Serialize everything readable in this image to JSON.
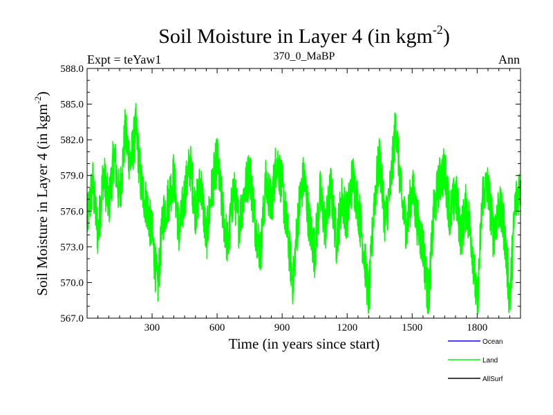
{
  "header": {
    "title_main": "Soil Moisture in Layer 4 (in kgm",
    "title_sup": "-2",
    "title_close": ")",
    "experiment": "Expt = teYaw1",
    "subtitle": "370_0_MaBP",
    "period": "Ann"
  },
  "chart_data": {
    "type": "line",
    "title": "Soil Moisture in Layer 4 (in kgm-2)",
    "xlabel": "Time (in years since start)",
    "ylabel": "Soil Moisture in Layer 4 (in kgm-2)",
    "ylabel_main": "Soil Moisture in Layer 4 (in kgm",
    "ylabel_sup": "-2",
    "ylabel_close": ")",
    "xlim": [
      0,
      2000
    ],
    "ylim": [
      567.0,
      588.0
    ],
    "xticks": [
      300,
      600,
      900,
      1200,
      1500,
      1800
    ],
    "xtick_labels": [
      "300",
      "600",
      "900",
      "1200",
      "1500",
      "1800"
    ],
    "yticks": [
      567,
      570,
      573,
      576,
      579,
      582,
      585,
      588
    ],
    "ytick_labels": [
      "567.0",
      "570.0",
      "573.0",
      "576.0",
      "579.0",
      "582.0",
      "585.0",
      "588.0"
    ],
    "series": [
      {
        "name": "Land",
        "color": "#00ff00",
        "x": [
          0,
          25,
          50,
          75,
          100,
          125,
          150,
          175,
          200,
          225,
          250,
          275,
          300,
          325,
          350,
          375,
          400,
          425,
          450,
          475,
          500,
          525,
          550,
          575,
          600,
          625,
          650,
          675,
          700,
          725,
          750,
          775,
          800,
          825,
          850,
          875,
          900,
          925,
          950,
          975,
          1000,
          1025,
          1050,
          1075,
          1100,
          1125,
          1150,
          1175,
          1200,
          1225,
          1250,
          1275,
          1300,
          1325,
          1350,
          1375,
          1400,
          1425,
          1450,
          1475,
          1500,
          1525,
          1550,
          1575,
          1600,
          1625,
          1650,
          1675,
          1700,
          1725,
          1750,
          1775,
          1800,
          1825,
          1850,
          1875,
          1900,
          1925,
          1950,
          1975,
          2000
        ],
        "values": [
          575.0,
          578.5,
          574.0,
          579.2,
          576.5,
          580.8,
          577.0,
          582.5,
          580.0,
          583.0,
          578.0,
          576.5,
          574.0,
          569.5,
          575.5,
          577.0,
          579.0,
          574.0,
          577.5,
          580.0,
          576.0,
          578.5,
          573.5,
          577.8,
          580.5,
          576.0,
          573.0,
          578.0,
          575.0,
          577.5,
          579.5,
          575.0,
          572.5,
          578.5,
          576.5,
          580.5,
          578.0,
          574.0,
          570.0,
          576.0,
          579.0,
          575.0,
          572.5,
          577.5,
          574.5,
          578.0,
          573.5,
          577.0,
          575.5,
          579.0,
          576.5,
          573.0,
          568.5,
          577.0,
          580.5,
          575.0,
          578.0,
          583.5,
          577.0,
          574.5,
          578.0,
          575.0,
          573.0,
          568.5,
          576.0,
          578.5,
          579.5,
          575.5,
          577.5,
          574.0,
          576.5,
          573.5,
          567.8,
          577.5,
          578.0,
          574.0,
          576.5,
          574.5,
          568.5,
          576.5,
          578.5
        ]
      },
      {
        "name": "Ocean",
        "color": "#0000ff",
        "x": [],
        "values": []
      },
      {
        "name": "AllSurf",
        "color": "#000000",
        "x": [],
        "values": []
      }
    ],
    "legend": [
      {
        "name": "Ocean",
        "color": "#0000ff"
      },
      {
        "name": "Land",
        "color": "#00ff00"
      },
      {
        "name": "AllSurf",
        "color": "#000000"
      }
    ],
    "legend_position": "bottom-right",
    "grid": false
  }
}
